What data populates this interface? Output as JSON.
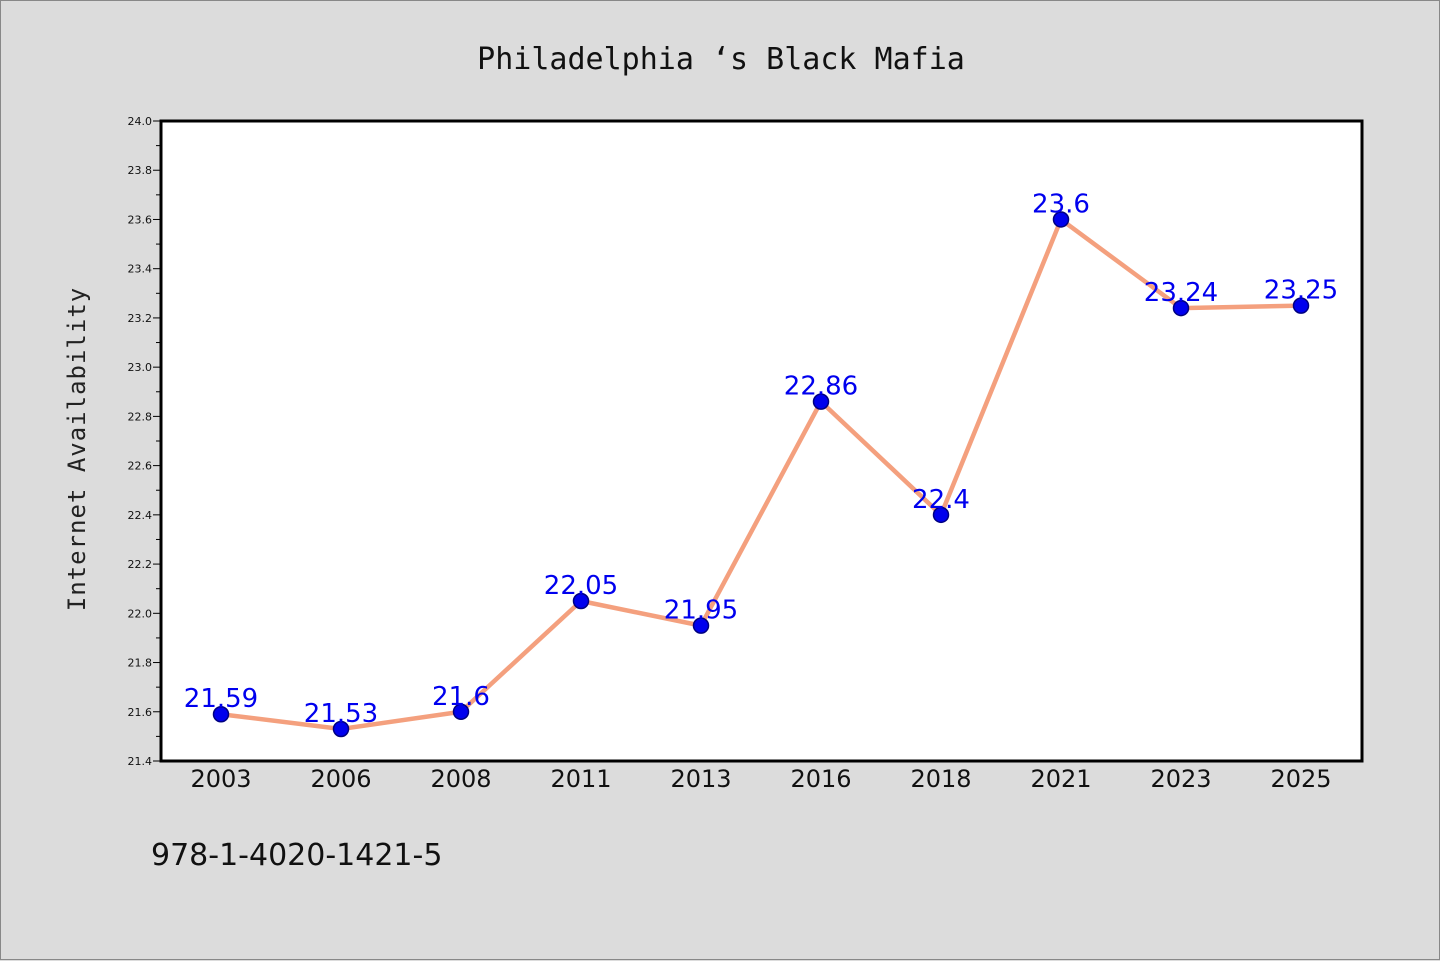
{
  "chart_data": {
    "type": "line",
    "title": "Philadelphia ‘s Black Mafia",
    "xlabel": "",
    "ylabel": "Internet Availability",
    "categories": [
      "2003",
      "2006",
      "2008",
      "2011",
      "2013",
      "2016",
      "2018",
      "2021",
      "2023",
      "2025"
    ],
    "values": [
      21.59,
      21.53,
      21.6,
      22.05,
      21.95,
      22.86,
      22.4,
      23.6,
      23.24,
      23.25
    ],
    "data_labels": [
      "21.59",
      "21.53",
      "21.6",
      "22.05",
      "21.95",
      "22.86",
      "22.4",
      "23.6",
      "23.24",
      "23.25"
    ],
    "ylim": [
      21.4,
      24.0
    ],
    "yticks": [
      "21.4",
      "21.6",
      "21.8",
      "22.0",
      "22.2",
      "22.4",
      "22.6",
      "22.8",
      "23.0",
      "23.2",
      "23.4",
      "23.6",
      "23.8",
      "24.0"
    ],
    "grid": false,
    "legend": "none",
    "colors": {
      "line": "#f4a07e",
      "marker": "#0000ee",
      "marker_edge": "#000080",
      "data_label": "#0000ee"
    }
  },
  "footnote": "978-1-4020-1421-5"
}
